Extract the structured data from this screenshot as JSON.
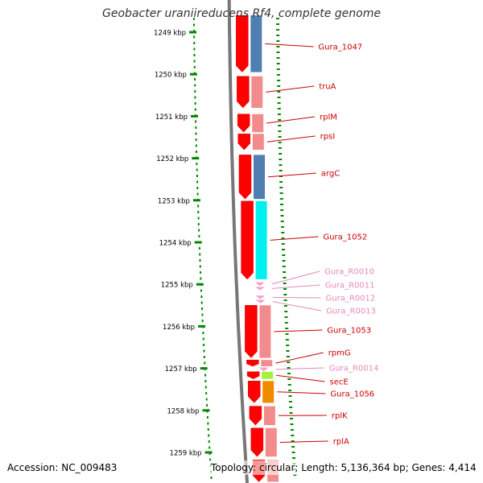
{
  "title": "Geobacter uraniireducens Rf4, complete genome",
  "footer": {
    "accession": "Accession: NC_009483",
    "summary": "Topology: circular; Length: 5,136,364 bp; Genes: 4,414"
  },
  "scale": {
    "unit": "kbp",
    "ticks": [
      "1249 kbp",
      "1250 kbp",
      "1251 kbp",
      "1252 kbp",
      "1253 kbp",
      "1254 kbp",
      "1255 kbp",
      "1256 kbp",
      "1257 kbp",
      "1258 kbp",
      "1259 kbp"
    ]
  },
  "colors": {
    "cds_forward": "#ff0000",
    "cds_dark": "#e00000",
    "cog_blue": "#4f7fb0",
    "cog_pink": "#f28c8c",
    "cog_cyan": "#00f0f0",
    "cog_green": "#a6f03c",
    "cog_orange": "#f08a00",
    "rna": "#f4a0c8",
    "backbone": "#777777",
    "tick_green": "#008800",
    "label_red": "#cc0000",
    "label_pink": "#e38ab8"
  },
  "features": [
    {
      "label": "Gura_1047",
      "type": "CDS",
      "cog": "blue",
      "start_kbp": 1248.6,
      "end_kbp": 1249.95
    },
    {
      "label": "truA",
      "type": "CDS",
      "cog": "pink",
      "start_kbp": 1250.05,
      "end_kbp": 1250.8
    },
    {
      "label": "rplM",
      "type": "CDS",
      "cog": "pink",
      "start_kbp": 1250.95,
      "end_kbp": 1251.38
    },
    {
      "label": "rpsI",
      "type": "CDS",
      "cog": "pink",
      "start_kbp": 1251.42,
      "end_kbp": 1251.8
    },
    {
      "label": "argC",
      "type": "CDS",
      "cog": "blue",
      "start_kbp": 1251.92,
      "end_kbp": 1252.97
    },
    {
      "label": "Gura_1052",
      "type": "CDS",
      "cog": "cyan",
      "start_kbp": 1253.02,
      "end_kbp": 1254.88
    },
    {
      "label": "Gura_R0010",
      "type": "RNA",
      "start_kbp": 1254.95,
      "end_kbp": 1255.04
    },
    {
      "label": "Gura_R0011",
      "type": "RNA",
      "start_kbp": 1255.06,
      "end_kbp": 1255.14
    },
    {
      "label": "Gura_R0012",
      "type": "RNA",
      "start_kbp": 1255.27,
      "end_kbp": 1255.35
    },
    {
      "label": "Gura_R0013",
      "type": "RNA",
      "start_kbp": 1255.37,
      "end_kbp": 1255.45
    },
    {
      "label": "Gura_1053",
      "type": "CDS",
      "cog": "pink",
      "start_kbp": 1255.5,
      "end_kbp": 1256.75
    },
    {
      "label": "rpmG",
      "type": "CDS",
      "cog": "pink",
      "start_kbp": 1256.8,
      "end_kbp": 1256.95
    },
    {
      "label": "Gura_R0014",
      "type": "RNA",
      "start_kbp": 1256.98,
      "end_kbp": 1257.07
    },
    {
      "label": "secE",
      "type": "CDS",
      "cog": "green",
      "start_kbp": 1257.08,
      "end_kbp": 1257.25
    },
    {
      "label": "Gura_1056",
      "type": "CDS",
      "cog": "orange",
      "start_kbp": 1257.3,
      "end_kbp": 1257.82
    },
    {
      "label": "rplK",
      "type": "CDS",
      "cog": "pink",
      "start_kbp": 1257.9,
      "end_kbp": 1258.35
    },
    {
      "label": "rplA",
      "type": "CDS",
      "cog": "pink",
      "start_kbp": 1258.42,
      "end_kbp": 1259.1
    },
    {
      "label": "",
      "type": "CDS",
      "cog": "pink",
      "start_kbp": 1259.18,
      "end_kbp": 1259.7
    }
  ]
}
